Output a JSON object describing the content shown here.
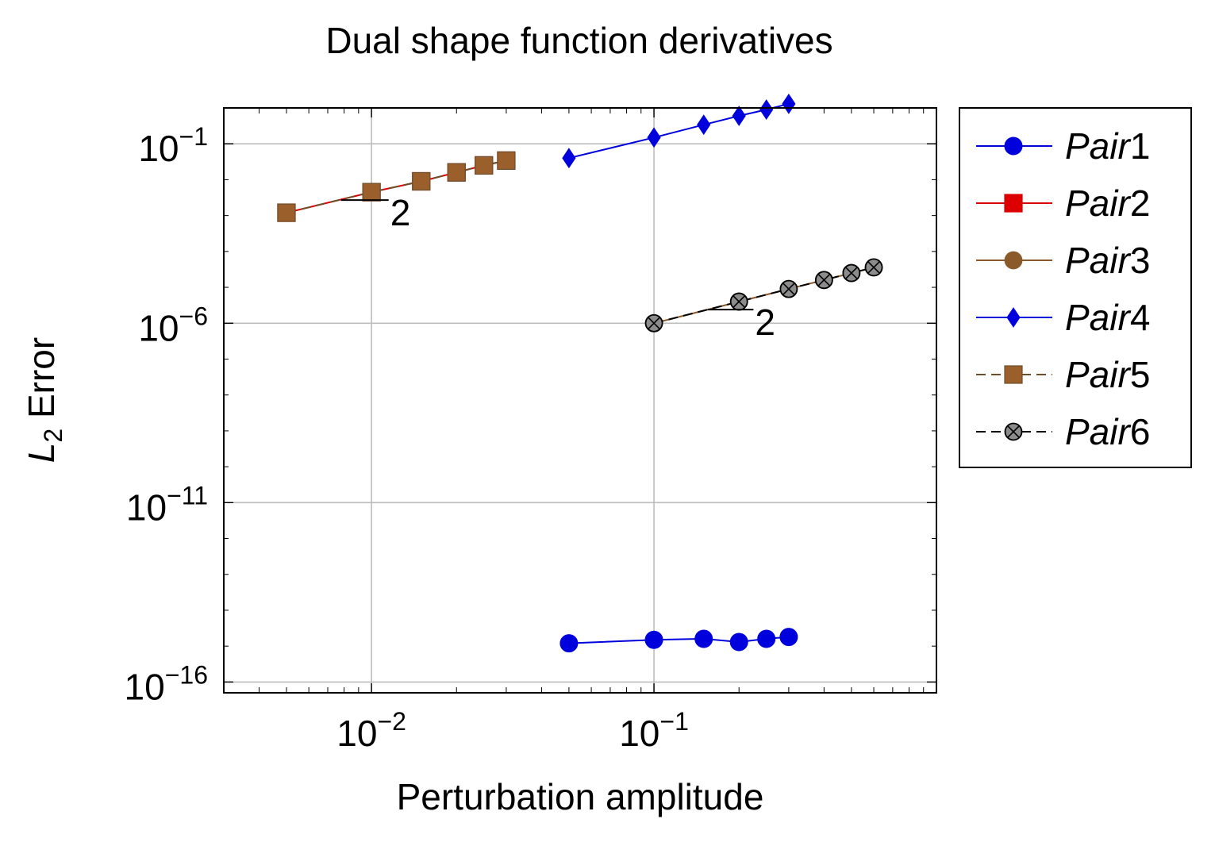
{
  "chart_data": {
    "type": "line",
    "title": "Dual shape function derivatives",
    "xlabel": "Perturbation amplitude",
    "ylabel": {
      "base": "L",
      "sub": "2",
      "rest": " Error"
    },
    "xscale": "log",
    "yscale": "log",
    "xlim": [
      0.003,
      1
    ],
    "ylim": [
      5e-17,
      1
    ],
    "grid": true,
    "legend_position": "outside-right",
    "x_ticks": [
      {
        "value": 0.01,
        "base": "10",
        "exp": "−2"
      },
      {
        "value": 0.1,
        "base": "10",
        "exp": "−1"
      }
    ],
    "y_ticks": [
      {
        "value": 0.1,
        "base": "10",
        "exp": "−1"
      },
      {
        "value": 1e-06,
        "base": "10",
        "exp": "−6"
      },
      {
        "value": 1e-11,
        "base": "10",
        "exp": "−11"
      },
      {
        "value": 1e-16,
        "base": "10",
        "exp": "−16"
      }
    ],
    "series": [
      {
        "name": "Pair1",
        "legend_italic": "Pair",
        "legend_num": "1",
        "color": "#0000dd",
        "marker": "circle",
        "dash": false,
        "x": [
          0.05,
          0.1,
          0.15,
          0.2,
          0.25,
          0.3
        ],
        "y": [
          1.2e-15,
          1.5e-15,
          1.6e-15,
          1.3e-15,
          1.6e-15,
          1.8e-15
        ]
      },
      {
        "name": "Pair2",
        "legend_italic": "Pair",
        "legend_num": "2",
        "color": "#dd0000",
        "marker": "square",
        "dash": false,
        "x": [
          0.005,
          0.01,
          0.015,
          0.02,
          0.025,
          0.03
        ],
        "y": [
          0.0012,
          0.0045,
          0.009,
          0.016,
          0.025,
          0.034
        ]
      },
      {
        "name": "Pair3",
        "legend_italic": "Pair",
        "legend_num": "3",
        "color": "#8b5a2b",
        "marker": "circle-x",
        "dash": false,
        "x": [
          0.1,
          0.2,
          0.3,
          0.4,
          0.5,
          0.6
        ],
        "y": [
          1e-06,
          4e-06,
          9e-06,
          1.6e-05,
          2.5e-05,
          3.6e-05
        ]
      },
      {
        "name": "Pair4",
        "legend_italic": "Pair",
        "legend_num": "4",
        "color": "#0000dd",
        "marker": "diamond",
        "dash": false,
        "x": [
          0.05,
          0.1,
          0.15,
          0.2,
          0.25,
          0.3
        ],
        "y": [
          0.04,
          0.15,
          0.34,
          0.6,
          0.9,
          1.3
        ]
      },
      {
        "name": "Pair5",
        "legend_italic": "Pair",
        "legend_num": "5",
        "color": "#6b4f2a",
        "fill": "#9b5f2c",
        "marker": "square",
        "dash": true,
        "x": [
          0.005,
          0.01,
          0.015,
          0.02,
          0.025,
          0.03
        ],
        "y": [
          0.0012,
          0.0045,
          0.009,
          0.016,
          0.025,
          0.034
        ]
      },
      {
        "name": "Pair6",
        "legend_italic": "Pair",
        "legend_num": "6",
        "color": "#000000",
        "fill": "#8c8c8c",
        "marker": "circle-x",
        "dash": true,
        "x": [
          0.1,
          0.2,
          0.3,
          0.4,
          0.5,
          0.6
        ],
        "y": [
          1e-06,
          4e-06,
          9e-06,
          1.6e-05,
          2.5e-05,
          3.6e-05
        ]
      }
    ],
    "annotations": [
      {
        "text": "2",
        "x1": 0.0078,
        "x2": 0.0115,
        "y": 0.0027
      },
      {
        "text": "2",
        "x1": 0.155,
        "x2": 0.225,
        "y": 2.4e-06
      }
    ]
  }
}
